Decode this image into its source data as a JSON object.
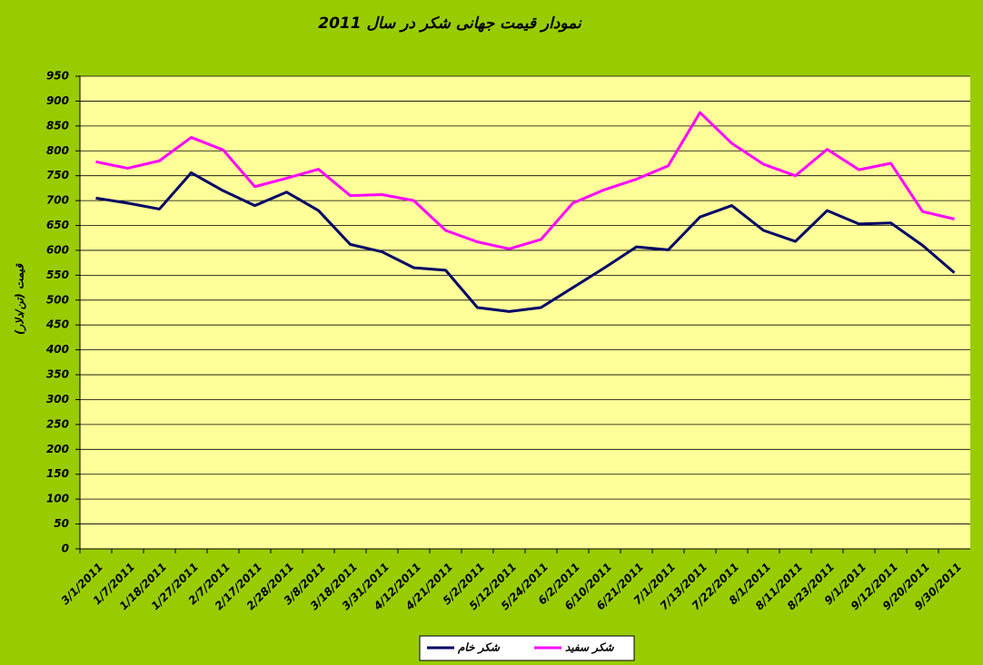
{
  "chart_data": {
    "type": "line",
    "title": "نمودار قیمت جهانی شکر در سال 2011",
    "y_label": "قیمت (تن/دلار)",
    "categories": [
      "3/1/2011",
      "1/7/2011",
      "1/18/2011",
      "1/27/2011",
      "2/7/2011",
      "2/17/2011",
      "2/28/2011",
      "3/8/2011",
      "3/18/2011",
      "3/31/2011",
      "4/12/2011",
      "4/21/2011",
      "5/2/2011",
      "5/12/2011",
      "5/24/2011",
      "6/2/2011",
      "6/10/2011",
      "6/21/2011",
      "7/1/2011",
      "7/13/2011",
      "7/22/2011",
      "8/1/2011",
      "8/11/2011",
      "8/23/2011",
      "9/1/2011",
      "9/12/2011",
      "9/20/2011",
      "9/30/2011"
    ],
    "series": [
      {
        "name": "شکر خام",
        "color": "#000066",
        "values": [
          705,
          695,
          683,
          756,
          720,
          690,
          717,
          680,
          612,
          597,
          565,
          560,
          485,
          477,
          485,
          525,
          565,
          607,
          601,
          667,
          690,
          640,
          618,
          680,
          653,
          655,
          610,
          555
        ]
      },
      {
        "name": "شکر سفید",
        "color": "#ff00ff",
        "values": [
          778,
          765,
          780,
          827,
          802,
          728,
          745,
          763,
          710,
          712,
          700,
          640,
          617,
          603,
          622,
          695,
          722,
          743,
          770,
          877,
          815,
          773,
          750,
          803,
          762,
          775,
          678,
          663
        ]
      }
    ],
    "ylim": [
      0,
      950
    ],
    "yticks": [
      0,
      50,
      100,
      150,
      200,
      250,
      300,
      350,
      400,
      450,
      500,
      550,
      600,
      650,
      700,
      750,
      800,
      850,
      900,
      950
    ],
    "grid": true,
    "legend": "bottom"
  }
}
